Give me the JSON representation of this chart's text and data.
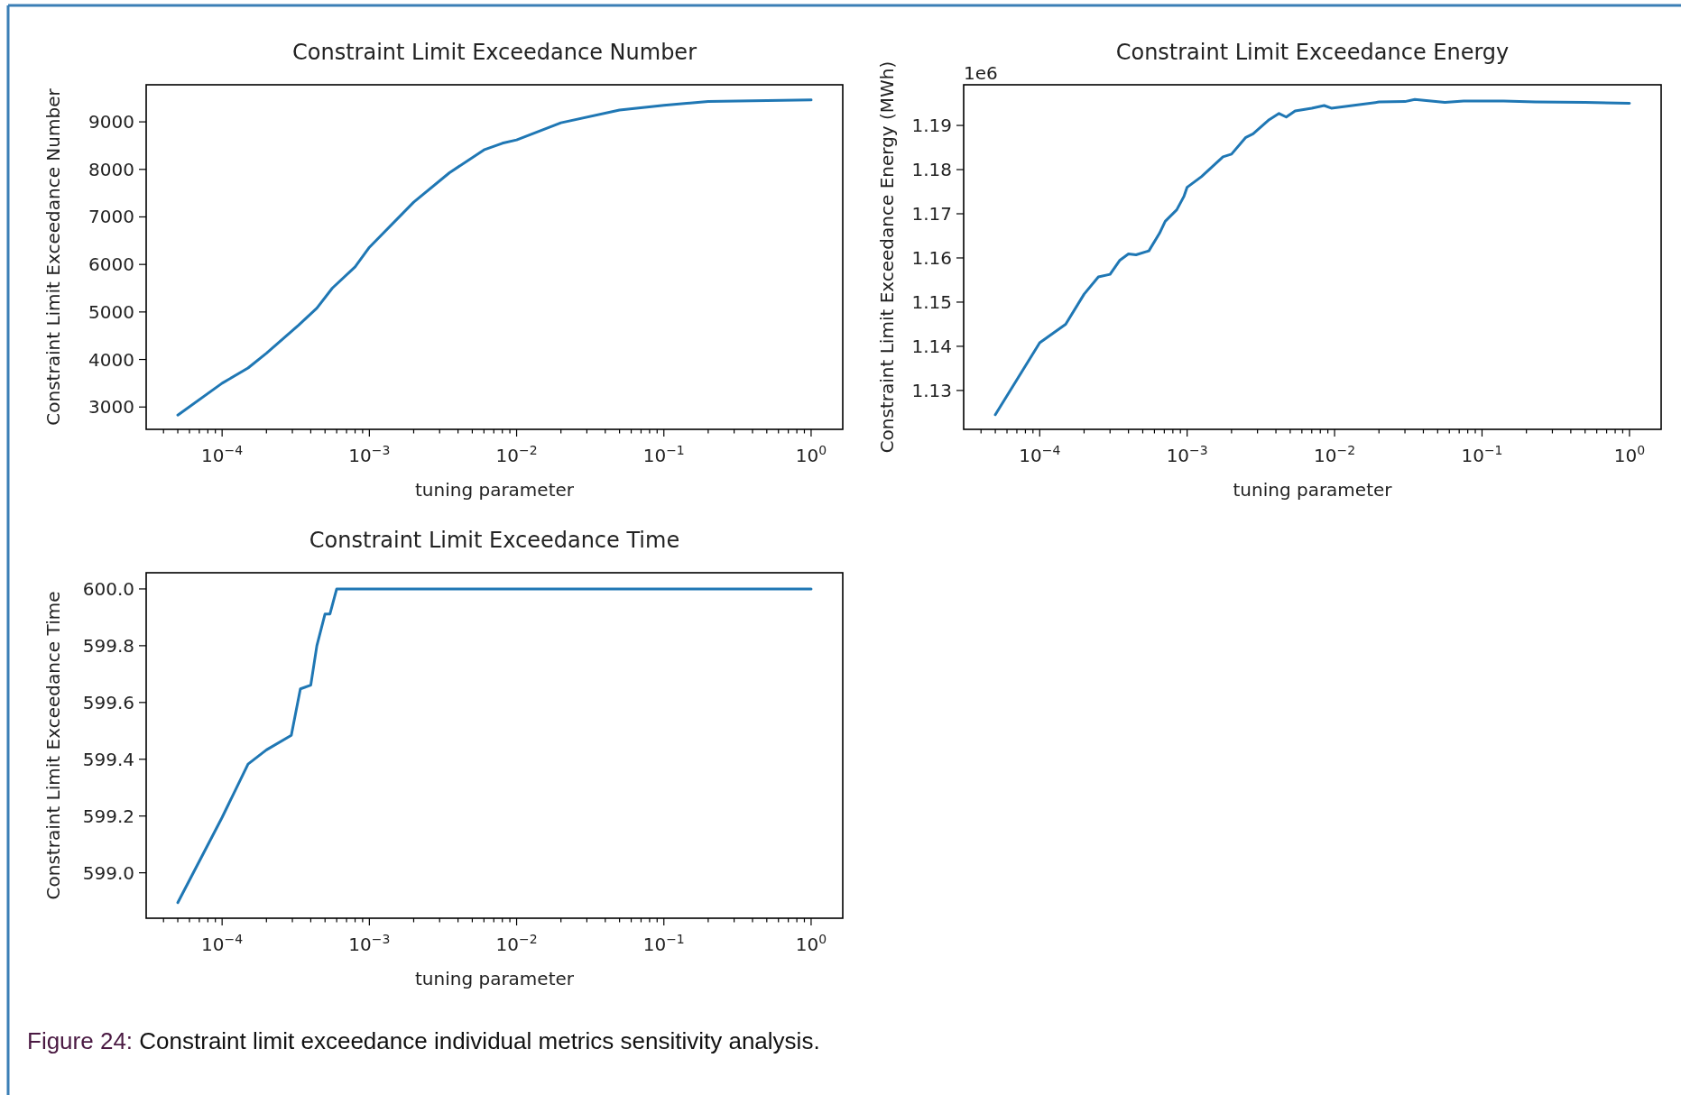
{
  "chart_data": [
    {
      "type": "line",
      "title": "Constraint Limit Exceedance Number",
      "xlabel": "tuning parameter",
      "ylabel": "Constraint Limit Exceedance Number",
      "log": "x",
      "grid": false,
      "xlim": [
        3.05e-05,
        1.64
      ],
      "ylim": [
        2530,
        9780
      ],
      "xticks": [
        {
          "value": 4e-05,
          "label": null
        },
        {
          "value": 5e-05,
          "label": null
        },
        {
          "value": 6e-05,
          "label": null
        },
        {
          "value": 7e-05,
          "label": null
        },
        {
          "value": 8e-05,
          "label": null
        },
        {
          "value": 9e-05,
          "label": null
        },
        {
          "value": 0.0001,
          "label": "10$^{−4}$"
        },
        {
          "value": 0.0002,
          "label": null
        },
        {
          "value": 0.0003,
          "label": null
        },
        {
          "value": 0.0004,
          "label": null
        },
        {
          "value": 0.0005,
          "label": null
        },
        {
          "value": 0.0006,
          "label": null
        },
        {
          "value": 0.0007,
          "label": null
        },
        {
          "value": 0.0008,
          "label": null
        },
        {
          "value": 0.0009,
          "label": null
        },
        {
          "value": 0.001,
          "label": "10$^{−3}$"
        },
        {
          "value": 0.002,
          "label": null
        },
        {
          "value": 0.003,
          "label": null
        },
        {
          "value": 0.004,
          "label": null
        },
        {
          "value": 0.005,
          "label": null
        },
        {
          "value": 0.006,
          "label": null
        },
        {
          "value": 0.007,
          "label": null
        },
        {
          "value": 0.008,
          "label": null
        },
        {
          "value": 0.009,
          "label": null
        },
        {
          "value": 0.01,
          "label": "10$^{−2}$"
        },
        {
          "value": 0.02,
          "label": null
        },
        {
          "value": 0.03,
          "label": null
        },
        {
          "value": 0.04,
          "label": null
        },
        {
          "value": 0.05,
          "label": null
        },
        {
          "value": 0.06,
          "label": null
        },
        {
          "value": 0.07,
          "label": null
        },
        {
          "value": 0.08,
          "label": null
        },
        {
          "value": 0.09,
          "label": null
        },
        {
          "value": 0.1,
          "label": "10$^{−1}$"
        },
        {
          "value": 0.2,
          "label": null
        },
        {
          "value": 0.3,
          "label": null
        },
        {
          "value": 0.4,
          "label": null
        },
        {
          "value": 0.5,
          "label": null
        },
        {
          "value": 0.6,
          "label": null
        },
        {
          "value": 0.7,
          "label": null
        },
        {
          "value": 0.8,
          "label": null
        },
        {
          "value": 0.9,
          "label": null
        },
        {
          "value": 1,
          "label": "10$^{0}$"
        }
      ],
      "yticks": [
        3000,
        4000,
        5000,
        6000,
        7000,
        8000,
        9000
      ],
      "series": [
        {
          "color": "#1f77b4",
          "x": [
            5e-05,
            0.0001,
            0.00015,
            0.0002,
            0.00033,
            0.00044,
            0.00056,
            0.0008,
            0.001,
            0.002,
            0.0035,
            0.006,
            0.008,
            0.01,
            0.02,
            0.05,
            0.1,
            0.2,
            1
          ],
          "values": [
            2830,
            3500,
            3820,
            4130,
            4720,
            5080,
            5500,
            5950,
            6360,
            7310,
            7930,
            8410,
            8550,
            8620,
            8980,
            9250,
            9350,
            9430,
            9460
          ]
        }
      ]
    },
    {
      "type": "line",
      "title": "Constraint Limit Exceedance Energy",
      "xlabel": "tuning parameter",
      "ylabel": "Constraint Limit Exceedance Energy (MWh)",
      "log": "x",
      "grid": false,
      "annotations": [
        "1e6"
      ],
      "xlim": [
        3.05e-05,
        1.64
      ],
      "ylim": [
        1.1212,
        1.1992
      ],
      "xticks": [
        {
          "value": 4e-05,
          "label": null
        },
        {
          "value": 5e-05,
          "label": null
        },
        {
          "value": 6e-05,
          "label": null
        },
        {
          "value": 7e-05,
          "label": null
        },
        {
          "value": 8e-05,
          "label": null
        },
        {
          "value": 9e-05,
          "label": null
        },
        {
          "value": 0.0001,
          "label": "10$^{−4}$"
        },
        {
          "value": 0.0002,
          "label": null
        },
        {
          "value": 0.0003,
          "label": null
        },
        {
          "value": 0.0004,
          "label": null
        },
        {
          "value": 0.0005,
          "label": null
        },
        {
          "value": 0.0006,
          "label": null
        },
        {
          "value": 0.0007,
          "label": null
        },
        {
          "value": 0.0008,
          "label": null
        },
        {
          "value": 0.0009,
          "label": null
        },
        {
          "value": 0.001,
          "label": "10$^{−3}$"
        },
        {
          "value": 0.002,
          "label": null
        },
        {
          "value": 0.003,
          "label": null
        },
        {
          "value": 0.004,
          "label": null
        },
        {
          "value": 0.005,
          "label": null
        },
        {
          "value": 0.006,
          "label": null
        },
        {
          "value": 0.007,
          "label": null
        },
        {
          "value": 0.008,
          "label": null
        },
        {
          "value": 0.009,
          "label": null
        },
        {
          "value": 0.01,
          "label": "10$^{−2}$"
        },
        {
          "value": 0.02,
          "label": null
        },
        {
          "value": 0.03,
          "label": null
        },
        {
          "value": 0.04,
          "label": null
        },
        {
          "value": 0.05,
          "label": null
        },
        {
          "value": 0.06,
          "label": null
        },
        {
          "value": 0.07,
          "label": null
        },
        {
          "value": 0.08,
          "label": null
        },
        {
          "value": 0.09,
          "label": null
        },
        {
          "value": 0.1,
          "label": "10$^{−1}$"
        },
        {
          "value": 0.2,
          "label": null
        },
        {
          "value": 0.3,
          "label": null
        },
        {
          "value": 0.4,
          "label": null
        },
        {
          "value": 0.5,
          "label": null
        },
        {
          "value": 0.6,
          "label": null
        },
        {
          "value": 0.7,
          "label": null
        },
        {
          "value": 0.8,
          "label": null
        },
        {
          "value": 0.9,
          "label": null
        },
        {
          "value": 1,
          "label": "10$^{0}$"
        }
      ],
      "yticks": [
        1.13,
        1.14,
        1.15,
        1.16,
        1.17,
        1.18,
        1.19
      ],
      "series": [
        {
          "color": "#1f77b4",
          "x": [
            5e-05,
            0.0001,
            0.00015,
            0.0002,
            0.00025,
            0.0003,
            0.00035,
            0.0004,
            0.00045,
            0.00055,
            0.00065,
            0.00071,
            0.00085,
            0.00095,
            0.001,
            0.00125,
            0.00175,
            0.002,
            0.0025,
            0.0028,
            0.0036,
            0.0042,
            0.0047,
            0.0054,
            0.007,
            0.0085,
            0.0095,
            0.02,
            0.03,
            0.035,
            0.056,
            0.075,
            0.14,
            0.23,
            0.5,
            1
          ],
          "values": [
            1.1245,
            1.1408,
            1.145,
            1.1518,
            1.1557,
            1.1563,
            1.1595,
            1.1609,
            1.1607,
            1.1616,
            1.1656,
            1.1683,
            1.1709,
            1.1739,
            1.176,
            1.1784,
            1.1829,
            1.1835,
            1.1873,
            1.1881,
            1.1913,
            1.1927,
            1.1919,
            1.1933,
            1.1939,
            1.1945,
            1.1939,
            1.1953,
            1.1954,
            1.1959,
            1.1952,
            1.1955,
            1.1955,
            1.1953,
            1.1952,
            1.195
          ]
        }
      ]
    },
    {
      "type": "line",
      "title": "Constraint Limit Exceedance Time",
      "xlabel": "tuning parameter",
      "ylabel": "Constraint Limit Exceedance Time",
      "log": "x",
      "grid": false,
      "annotations": [
        "Figure 24: Constraint limit exceedance individual metrics sensitivity analysis."
      ],
      "xlim": [
        3.05e-05,
        1.64
      ],
      "ylim": [
        598.84,
        600.057
      ],
      "xticks": [
        {
          "value": 4e-05,
          "label": null
        },
        {
          "value": 5e-05,
          "label": null
        },
        {
          "value": 6e-05,
          "label": null
        },
        {
          "value": 7e-05,
          "label": null
        },
        {
          "value": 8e-05,
          "label": null
        },
        {
          "value": 9e-05,
          "label": null
        },
        {
          "value": 0.0001,
          "label": "10$^{−4}$"
        },
        {
          "value": 0.0002,
          "label": null
        },
        {
          "value": 0.0003,
          "label": null
        },
        {
          "value": 0.0004,
          "label": null
        },
        {
          "value": 0.0005,
          "label": null
        },
        {
          "value": 0.0006,
          "label": null
        },
        {
          "value": 0.0007,
          "label": null
        },
        {
          "value": 0.0008,
          "label": null
        },
        {
          "value": 0.0009,
          "label": null
        },
        {
          "value": 0.001,
          "label": "10$^{−3}$"
        },
        {
          "value": 0.002,
          "label": null
        },
        {
          "value": 0.003,
          "label": null
        },
        {
          "value": 0.004,
          "label": null
        },
        {
          "value": 0.005,
          "label": null
        },
        {
          "value": 0.006,
          "label": null
        },
        {
          "value": 0.007,
          "label": null
        },
        {
          "value": 0.008,
          "label": null
        },
        {
          "value": 0.009,
          "label": null
        },
        {
          "value": 0.01,
          "label": "10$^{−2}$"
        },
        {
          "value": 0.02,
          "label": null
        },
        {
          "value": 0.03,
          "label": null
        },
        {
          "value": 0.04,
          "label": null
        },
        {
          "value": 0.05,
          "label": null
        },
        {
          "value": 0.06,
          "label": null
        },
        {
          "value": 0.07,
          "label": null
        },
        {
          "value": 0.08,
          "label": null
        },
        {
          "value": 0.09,
          "label": null
        },
        {
          "value": 0.1,
          "label": "10$^{−1}$"
        },
        {
          "value": 0.2,
          "label": null
        },
        {
          "value": 0.3,
          "label": null
        },
        {
          "value": 0.4,
          "label": null
        },
        {
          "value": 0.5,
          "label": null
        },
        {
          "value": 0.6,
          "label": null
        },
        {
          "value": 0.7,
          "label": null
        },
        {
          "value": 0.8,
          "label": null
        },
        {
          "value": 0.9,
          "label": null
        },
        {
          "value": 1,
          "label": "10$^{0}$"
        }
      ],
      "yticks": [
        {
          "value": 599,
          "label": "599.0"
        },
        599.2,
        599.4,
        599.6,
        599.8,
        {
          "value": 600,
          "label": "600.0"
        }
      ],
      "series": [
        {
          "color": "#1f77b4",
          "x": [
            5e-05,
            0.0001,
            0.00015,
            0.0002,
            0.000295,
            0.00034,
            0.0004,
            0.00044,
            0.0005,
            0.00054,
            0.0006,
            1
          ],
          "values": [
            598.895,
            599.195,
            599.383,
            599.433,
            599.484,
            599.648,
            599.661,
            599.8,
            599.912,
            599.912,
            600,
            600
          ]
        }
      ]
    }
  ]
}
